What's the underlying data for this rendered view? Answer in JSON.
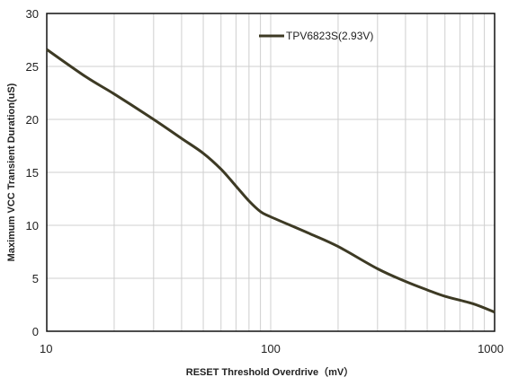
{
  "chart_data": {
    "type": "line",
    "x_scale": "log",
    "xlim": [
      10,
      1000
    ],
    "ylim": [
      0,
      30
    ],
    "x_ticks": [
      10,
      100,
      1000
    ],
    "y_ticks": [
      0,
      5,
      10,
      15,
      20,
      25,
      30
    ],
    "x_tick_labels": [
      "10",
      "100",
      "1000"
    ],
    "y_tick_labels": [
      "0",
      "5",
      "10",
      "15",
      "20",
      "25",
      "30"
    ],
    "xlabel": "RESET Threshold Overdrive（mV）",
    "ylabel": "Maximum VCC Transient Duration(uS)",
    "grid": true,
    "legend_position": "top-center",
    "series": [
      {
        "name": "TPV6823S(2.93V)",
        "color": "#3d3a24",
        "x": [
          10,
          15,
          20,
          30,
          40,
          50,
          60,
          70,
          80,
          90,
          100,
          150,
          200,
          300,
          400,
          500,
          600,
          800,
          1000
        ],
        "y": [
          26.6,
          24.0,
          22.4,
          20.0,
          18.2,
          16.8,
          15.3,
          13.7,
          12.3,
          11.3,
          10.8,
          9.2,
          8.0,
          5.9,
          4.7,
          3.9,
          3.3,
          2.6,
          1.8
        ]
      }
    ]
  }
}
